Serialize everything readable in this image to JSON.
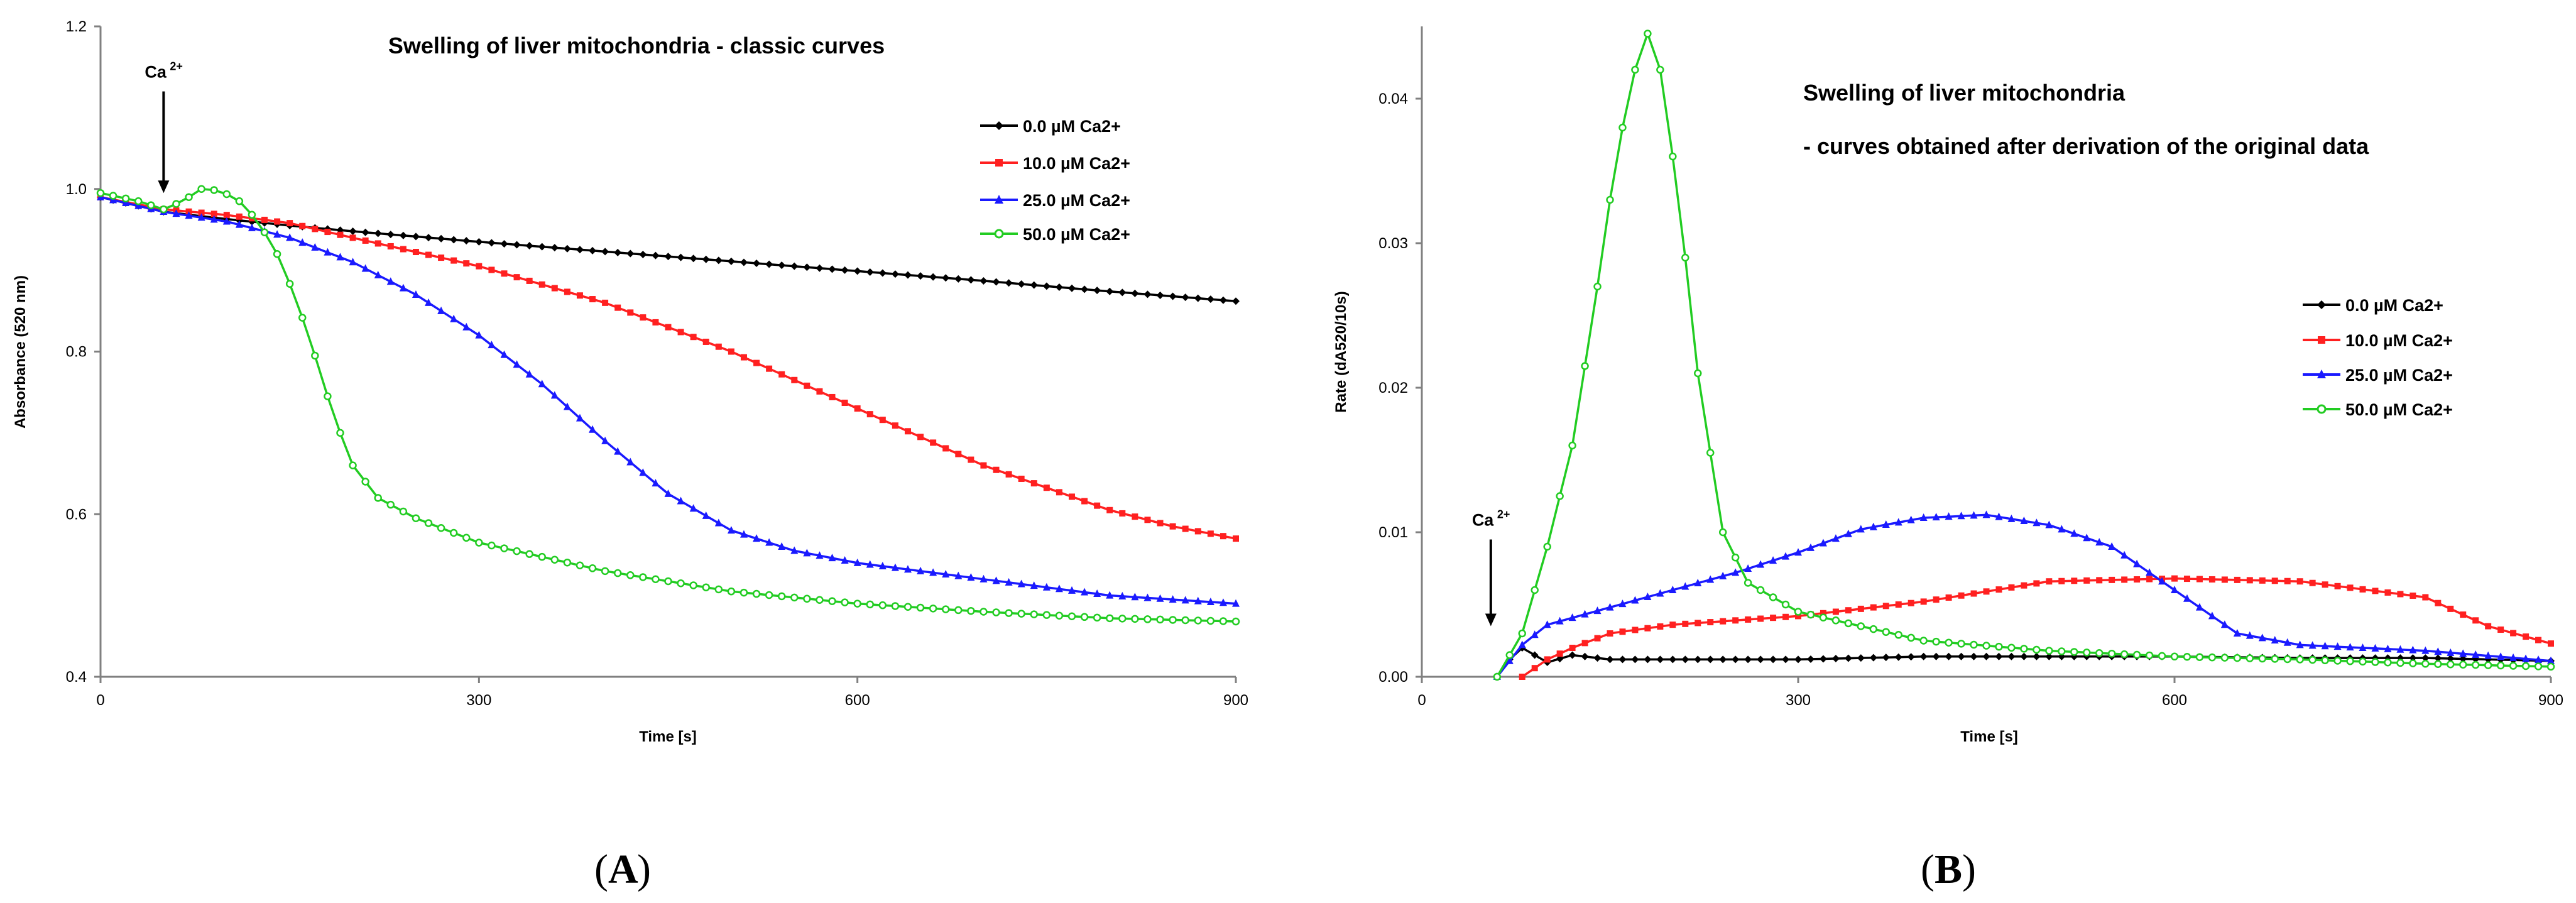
{
  "colors": {
    "black": "#000000",
    "red": "#ff2020",
    "blue": "#1a1aff",
    "green": "#22cc22",
    "axis": "#808080"
  },
  "chart_data": [
    {
      "type": "line",
      "panel_label": "A",
      "title": "Swelling of liver mitochondria - classic curves",
      "xlabel": "Time [s]",
      "ylabel": "Absorbance (520 nm)",
      "xlim": [
        0,
        900
      ],
      "ylim": [
        0.4,
        1.2
      ],
      "xticks": [
        "0",
        "300",
        "600",
        "900"
      ],
      "yticks": [
        "0.4",
        "0.6",
        "0.8",
        "1.0",
        "1.2"
      ],
      "annotation": {
        "text": "Ca",
        "sup": "2+",
        "x": 50,
        "arrow_from": 1.12,
        "arrow_to": 0.995
      },
      "legend_position": "top-right",
      "series": [
        {
          "name": "0.0 µM Ca2+",
          "color": "black",
          "marker": "diamond",
          "points": [
            [
              0,
              0.99
            ],
            [
              50,
              0.972
            ],
            [
              100,
              0.963
            ],
            [
              150,
              0.955
            ],
            [
              200,
              0.948
            ],
            [
              300,
              0.935
            ],
            [
              400,
              0.923
            ],
            [
              500,
              0.911
            ],
            [
              600,
              0.899
            ],
            [
              700,
              0.887
            ],
            [
              800,
              0.874
            ],
            [
              900,
              0.862
            ]
          ]
        },
        {
          "name": "10.0 µM Ca2+",
          "color": "red",
          "marker": "square",
          "points": [
            [
              0,
              0.99
            ],
            [
              50,
              0.975
            ],
            [
              100,
              0.968
            ],
            [
              150,
              0.958
            ],
            [
              200,
              0.94
            ],
            [
              300,
              0.905
            ],
            [
              400,
              0.86
            ],
            [
              500,
              0.8
            ],
            [
              600,
              0.73
            ],
            [
              700,
              0.66
            ],
            [
              800,
              0.605
            ],
            [
              850,
              0.585
            ],
            [
              900,
              0.57
            ]
          ]
        },
        {
          "name": "25.0 µM Ca2+",
          "color": "blue",
          "marker": "triangle",
          "points": [
            [
              0,
              0.99
            ],
            [
              50,
              0.972
            ],
            [
              100,
              0.96
            ],
            [
              150,
              0.94
            ],
            [
              200,
              0.91
            ],
            [
              250,
              0.87
            ],
            [
              300,
              0.82
            ],
            [
              350,
              0.76
            ],
            [
              400,
              0.69
            ],
            [
              450,
              0.625
            ],
            [
              500,
              0.58
            ],
            [
              550,
              0.555
            ],
            [
              600,
              0.54
            ],
            [
              700,
              0.52
            ],
            [
              800,
              0.5
            ],
            [
              900,
              0.49
            ]
          ]
        },
        {
          "name": "50.0 µM Ca2+",
          "color": "green",
          "marker": "circle",
          "points": [
            [
              0,
              0.995
            ],
            [
              30,
              0.985
            ],
            [
              50,
              0.975
            ],
            [
              65,
              0.985
            ],
            [
              80,
              1.0
            ],
            [
              95,
              0.998
            ],
            [
              110,
              0.985
            ],
            [
              125,
              0.96
            ],
            [
              140,
              0.92
            ],
            [
              155,
              0.865
            ],
            [
              170,
              0.795
            ],
            [
              185,
              0.72
            ],
            [
              200,
              0.66
            ],
            [
              220,
              0.62
            ],
            [
              250,
              0.595
            ],
            [
              300,
              0.565
            ],
            [
              400,
              0.53
            ],
            [
              500,
              0.505
            ],
            [
              600,
              0.49
            ],
            [
              700,
              0.48
            ],
            [
              800,
              0.472
            ],
            [
              900,
              0.468
            ]
          ]
        }
      ]
    },
    {
      "type": "line",
      "panel_label": "B",
      "title_lines": [
        "Swelling of liver mitochondria",
        "- curves obtained after derivation of the original data"
      ],
      "xlabel": "Time [s]",
      "ylabel": "Rate (dA520/10s)",
      "xlim": [
        0,
        900
      ],
      "ylim": [
        0,
        0.045
      ],
      "xticks": [
        "0",
        "300",
        "600",
        "900"
      ],
      "yticks": [
        "0.00",
        "0.01",
        "0.02",
        "0.03",
        "0.04"
      ],
      "annotation": {
        "text": "Ca",
        "sup": "2+",
        "x": 55,
        "arrow_from": 0.0095,
        "arrow_to": 0.0035
      },
      "legend_position": "right",
      "series": [
        {
          "name": "0.0 µM Ca2+",
          "color": "black",
          "marker": "diamond",
          "points": [
            [
              60,
              0.0
            ],
            [
              70,
              0.0012
            ],
            [
              80,
              0.002
            ],
            [
              90,
              0.0015
            ],
            [
              100,
              0.001
            ],
            [
              120,
              0.0015
            ],
            [
              150,
              0.0012
            ],
            [
              200,
              0.0012
            ],
            [
              300,
              0.0012
            ],
            [
              400,
              0.0014
            ],
            [
              500,
              0.0014
            ],
            [
              600,
              0.0014
            ],
            [
              700,
              0.0013
            ],
            [
              800,
              0.0013
            ],
            [
              900,
              0.0011
            ]
          ]
        },
        {
          "name": "10.0 µM Ca2+",
          "color": "red",
          "marker": "square",
          "points": [
            [
              80,
              0.0
            ],
            [
              100,
              0.0012
            ],
            [
              120,
              0.002
            ],
            [
              150,
              0.003
            ],
            [
              200,
              0.0036
            ],
            [
              300,
              0.0042
            ],
            [
              400,
              0.0052
            ],
            [
              500,
              0.0066
            ],
            [
              600,
              0.0068
            ],
            [
              700,
              0.0066
            ],
            [
              800,
              0.0055
            ],
            [
              850,
              0.0035
            ],
            [
              900,
              0.0023
            ]
          ]
        },
        {
          "name": "25.0 µM Ca2+",
          "color": "blue",
          "marker": "triangle",
          "points": [
            [
              60,
              0.0
            ],
            [
              80,
              0.0022
            ],
            [
              100,
              0.0036
            ],
            [
              150,
              0.0048
            ],
            [
              200,
              0.006
            ],
            [
              250,
              0.0072
            ],
            [
              300,
              0.0086
            ],
            [
              350,
              0.0102
            ],
            [
              400,
              0.011
            ],
            [
              450,
              0.0112
            ],
            [
              500,
              0.0105
            ],
            [
              550,
              0.009
            ],
            [
              600,
              0.006
            ],
            [
              650,
              0.003
            ],
            [
              700,
              0.0022
            ],
            [
              800,
              0.0018
            ],
            [
              900,
              0.0011
            ]
          ]
        },
        {
          "name": "50.0 µM Ca2+",
          "color": "green",
          "marker": "circle",
          "points": [
            [
              60,
              0.0
            ],
            [
              80,
              0.003
            ],
            [
              100,
              0.009
            ],
            [
              120,
              0.016
            ],
            [
              140,
              0.027
            ],
            [
              155,
              0.036
            ],
            [
              170,
              0.042
            ],
            [
              180,
              0.0445
            ],
            [
              190,
              0.042
            ],
            [
              205,
              0.033
            ],
            [
              220,
              0.021
            ],
            [
              240,
              0.01
            ],
            [
              260,
              0.0065
            ],
            [
              300,
              0.0045
            ],
            [
              400,
              0.0025
            ],
            [
              500,
              0.0018
            ],
            [
              600,
              0.0014
            ],
            [
              700,
              0.0012
            ],
            [
              800,
              0.0009
            ],
            [
              900,
              0.0007
            ]
          ]
        }
      ]
    }
  ]
}
